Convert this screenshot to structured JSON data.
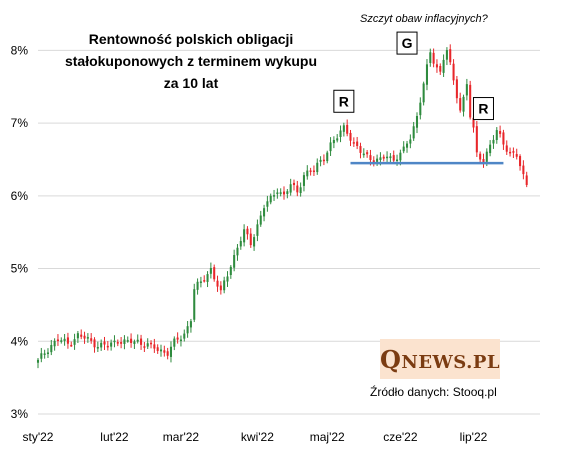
{
  "chart_data": {
    "type": "candlestick",
    "title_lines": [
      "Rentowność polskich obligacji",
      "stałokuponowych  z terminem wykupu",
      "za 10 lat"
    ],
    "ylim": [
      3,
      8.5
    ],
    "y_ticks": [
      3,
      4,
      5,
      6,
      7,
      8
    ],
    "y_tick_labels": [
      "3%",
      "4%",
      "5%",
      "6%",
      "7%",
      "8%"
    ],
    "x_ticks": [
      {
        "label": "sty'22",
        "pos": 0
      },
      {
        "label": "lut'22",
        "pos": 23
      },
      {
        "label": "mar'22",
        "pos": 43
      },
      {
        "label": "kwi'22",
        "pos": 66
      },
      {
        "label": "maj'22",
        "pos": 87
      },
      {
        "label": "cze'22",
        "pos": 109
      },
      {
        "label": "lip'22",
        "pos": 131
      }
    ],
    "x_range": [
      0,
      151
    ],
    "grid_y": true,
    "up_color": "#2e8b3e",
    "down_color": "#e8262a",
    "support_line": {
      "x0": 94,
      "x1": 140,
      "y": 6.45,
      "color": "#4f86c6"
    },
    "labels": [
      {
        "text": "R",
        "x": 92,
        "y": 7.3
      },
      {
        "text": "G",
        "x": 111,
        "y": 8.1
      },
      {
        "text": "R",
        "x": 134,
        "y": 7.2
      }
    ],
    "annotation": "Szczyt  obaw inflacyjnych?",
    "source": "Źródło danych: Stooq.pl",
    "logo": {
      "big": "Q",
      "rest": "NEWS.PL"
    },
    "anchors": [
      [
        0,
        3.72
      ],
      [
        2,
        3.85
      ],
      [
        4,
        3.95
      ],
      [
        6,
        4.02
      ],
      [
        9,
        3.97
      ],
      [
        12,
        4.08
      ],
      [
        15,
        4.02
      ],
      [
        18,
        3.95
      ],
      [
        21,
        3.93
      ],
      [
        24,
        4.02
      ],
      [
        27,
        3.98
      ],
      [
        30,
        4.0
      ],
      [
        33,
        3.95
      ],
      [
        36,
        3.88
      ],
      [
        39,
        3.85
      ],
      [
        41,
        3.98
      ],
      [
        43,
        4.05
      ],
      [
        44,
        4.1
      ],
      [
        46,
        4.32
      ],
      [
        47,
        4.72
      ],
      [
        49,
        4.8
      ],
      [
        52,
        5.0
      ],
      [
        55,
        4.65
      ],
      [
        56,
        4.8
      ],
      [
        58,
        5.05
      ],
      [
        60,
        5.3
      ],
      [
        62,
        5.5
      ],
      [
        64,
        5.35
      ],
      [
        66,
        5.6
      ],
      [
        68,
        5.85
      ],
      [
        70,
        5.95
      ],
      [
        72,
        6.1
      ],
      [
        74,
        6.0
      ],
      [
        76,
        6.15
      ],
      [
        78,
        6.05
      ],
      [
        80,
        6.3
      ],
      [
        83,
        6.35
      ],
      [
        86,
        6.55
      ],
      [
        88,
        6.7
      ],
      [
        90,
        6.8
      ],
      [
        92,
        6.95
      ],
      [
        93,
        6.9
      ],
      [
        95,
        6.7
      ],
      [
        97,
        6.6
      ],
      [
        99,
        6.55
      ],
      [
        101,
        6.5
      ],
      [
        103,
        6.48
      ],
      [
        105,
        6.55
      ],
      [
        107,
        6.5
      ],
      [
        108,
        6.55
      ],
      [
        110,
        6.62
      ],
      [
        112,
        6.8
      ],
      [
        114,
        7.1
      ],
      [
        116,
        7.55
      ],
      [
        118,
        7.95
      ],
      [
        119,
        7.85
      ],
      [
        121,
        7.7
      ],
      [
        122,
        7.9
      ],
      [
        123,
        8.02
      ],
      [
        125,
        7.55
      ],
      [
        127,
        7.2
      ],
      [
        128,
        7.35
      ],
      [
        129,
        7.55
      ],
      [
        130,
        7.1
      ],
      [
        131,
        6.9
      ],
      [
        132,
        6.55
      ],
      [
        134,
        6.5
      ],
      [
        136,
        6.7
      ],
      [
        138,
        6.88
      ],
      [
        140,
        6.72
      ],
      [
        142,
        6.6
      ],
      [
        144,
        6.55
      ],
      [
        145,
        6.4
      ],
      [
        146,
        6.25
      ],
      [
        147,
        6.15
      ]
    ]
  }
}
